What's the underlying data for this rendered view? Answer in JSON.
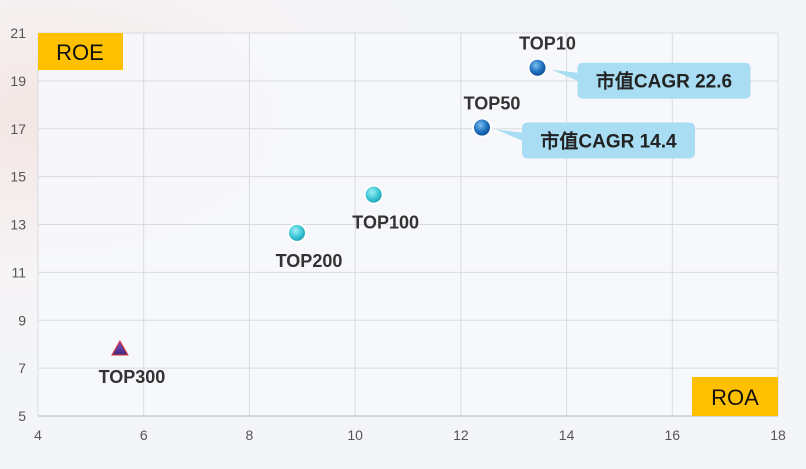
{
  "colors": {
    "background": "#f4f5f8",
    "plot_bg": "#f7f8fb",
    "grid": "#d9dbe0",
    "axis_tag": "#ffc000",
    "callout": "#a9ddf3",
    "marker_teal": "#3cc6d6",
    "marker_blue": "#1f6fc0",
    "marker_triangle": "#6a3aa6"
  },
  "chart_data": {
    "type": "scatter",
    "xlabel": "ROA",
    "ylabel": "ROE",
    "xlim": [
      4,
      18
    ],
    "ylim": [
      5,
      21
    ],
    "xticks": [
      4,
      6,
      8,
      10,
      12,
      14,
      16,
      18
    ],
    "yticks": [
      5,
      7,
      9,
      11,
      13,
      15,
      17,
      19,
      21
    ],
    "grid": true,
    "points": [
      {
        "label": "TOP10",
        "x": 13.45,
        "y": 19.55,
        "marker": "circle",
        "color": "blue",
        "label_pos": "above",
        "callout": "市值CAGR 22.6"
      },
      {
        "label": "TOP50",
        "x": 12.4,
        "y": 17.05,
        "marker": "circle",
        "color": "blue",
        "label_pos": "above",
        "callout": "市值CAGR 14.4"
      },
      {
        "label": "TOP100",
        "x": 10.35,
        "y": 14.25,
        "marker": "circle",
        "color": "teal",
        "label_pos": "below",
        "callout": ""
      },
      {
        "label": "TOP200",
        "x": 8.9,
        "y": 12.65,
        "marker": "circle",
        "color": "teal",
        "label_pos": "below",
        "callout": ""
      },
      {
        "label": "TOP300",
        "x": 5.55,
        "y": 7.8,
        "marker": "triangle",
        "color": "purple",
        "label_pos": "below",
        "callout": ""
      }
    ]
  }
}
